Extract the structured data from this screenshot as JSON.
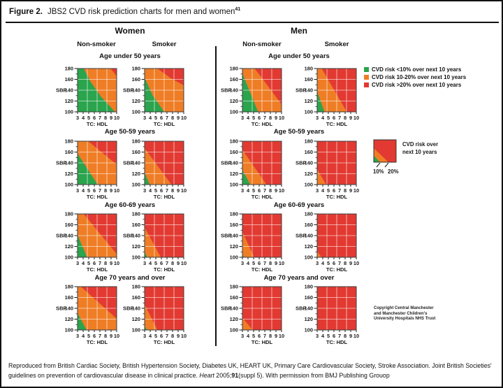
{
  "figure": {
    "label": "Figure 2.",
    "title": "JBS2 CVD risk prediction charts for men and women",
    "title_ref": "41"
  },
  "sections": {
    "women": "Women",
    "men": "Men"
  },
  "subheaders": {
    "nonsmoker": "Non-smoker",
    "smoker": "Smoker"
  },
  "age_rows": [
    "Age under 50 years",
    "Age 50-59 years",
    "Age 60-69 years",
    "Age 70 years and over"
  ],
  "colors": {
    "green": "#2aa44d",
    "orange": "#ef7d25",
    "red": "#e23a32",
    "grid": "rgba(255,255,255,0.55)"
  },
  "legend": {
    "items": [
      {
        "color": "green",
        "label": "CVD risk <10% over next 10 years"
      },
      {
        "color": "orange",
        "label": "CVD risk 10-20% over next 10 years"
      },
      {
        "color": "red",
        "label": "CVD risk >20% over next 10 years"
      }
    ]
  },
  "legend2": {
    "line1": "CVD risk over",
    "line2": "next 10 years",
    "label_10": "10%",
    "label_20": "20%"
  },
  "copyright": [
    "Copyright Central Manchester",
    "and Manchester Children's",
    "University Hospitals NHS Trust"
  ],
  "caption": {
    "p1": "Reproduced from British Cardiac Society, British Hypertension Society, Diabetes UK, HEART UK, Primary Care Cardiovascular Society, Stroke Association.  Joint British Societies' guidelines on prevention of cardiovascular disease in clinical practice. ",
    "journal": "Heart",
    "p2": " 2005;",
    "vol": "91",
    "p3": "(suppl 5). With permission from BMJ Publishing Grouop"
  },
  "chart_data": {
    "type": "area",
    "description": "JBS2 CVD risk region charts; colored regions give 10-year CVD risk band as a function of SBP and TC:HDL ratio, by sex, smoking status and age group",
    "x": {
      "label": "TC: HDL",
      "ticks": [
        3,
        4,
        5,
        6,
        7,
        8,
        9,
        10
      ],
      "range": [
        3,
        10
      ]
    },
    "y": {
      "label": "SBP",
      "ticks": [
        180,
        160,
        140,
        120,
        100
      ],
      "minor_ticks": [
        170,
        150,
        130,
        110
      ],
      "range": [
        100,
        180
      ]
    },
    "risk_levels": [
      "<10%",
      "10-20%",
      ">20%"
    ],
    "charts": [
      {
        "gender": "Women",
        "smoking": "Non-smoker",
        "age_group": "Age under 50 years",
        "regions": {
          "green": [
            [
              3,
              100
            ],
            [
              3,
              180
            ],
            [
              4.1,
              180
            ],
            [
              5.3,
              156
            ],
            [
              7.2,
              128
            ],
            [
              9.7,
              100
            ]
          ],
          "red": [
            [
              8.9,
              180
            ],
            [
              10,
              180
            ],
            [
              10,
              166
            ]
          ]
        }
      },
      {
        "gender": "Women",
        "smoking": "Smoker",
        "age_group": "Age under 50 years",
        "regions": {
          "green": [
            [
              3,
              100
            ],
            [
              3,
              163
            ],
            [
              4.4,
              131
            ],
            [
              6.5,
              100
            ]
          ],
          "red": [
            [
              5.3,
              180
            ],
            [
              10,
              180
            ],
            [
              10,
              149
            ],
            [
              7.7,
              162
            ]
          ]
        }
      },
      {
        "gender": "Men",
        "smoking": "Non-smoker",
        "age_group": "Age under 50 years",
        "regions": {
          "green": [
            [
              3,
              100
            ],
            [
              3,
              171
            ],
            [
              5.8,
              100
            ]
          ],
          "red": [
            [
              5.2,
              180
            ],
            [
              10,
              180
            ],
            [
              10,
              114
            ]
          ]
        }
      },
      {
        "gender": "Men",
        "smoking": "Smoker",
        "age_group": "Age under 50 years",
        "regions": {
          "green": [
            [
              3,
              100
            ],
            [
              3,
              137
            ],
            [
              4.3,
              100
            ]
          ],
          "red": [
            [
              3.8,
              180
            ],
            [
              10,
              180
            ],
            [
              10,
              100
            ],
            [
              8.3,
              100
            ]
          ]
        }
      },
      {
        "gender": "Women",
        "smoking": "Non-smoker",
        "age_group": "Age 50-59 years",
        "regions": {
          "green": [
            [
              3,
              100
            ],
            [
              3,
              157
            ],
            [
              6.6,
              100
            ]
          ],
          "red": [
            [
              4.9,
              180
            ],
            [
              10,
              180
            ],
            [
              10,
              137
            ]
          ]
        }
      },
      {
        "gender": "Women",
        "smoking": "Smoker",
        "age_group": "Age 50-59 years",
        "regions": {
          "green": [
            [
              3,
              100
            ],
            [
              3,
              122
            ],
            [
              3.9,
              100
            ]
          ],
          "red": [
            [
              3,
              167
            ],
            [
              3,
              180
            ],
            [
              10,
              180
            ],
            [
              10,
              100
            ],
            [
              7.8,
              100
            ]
          ]
        }
      },
      {
        "gender": "Men",
        "smoking": "Non-smoker",
        "age_group": "Age 50-59 years",
        "regions": {
          "green": [
            [
              3,
              100
            ],
            [
              3,
              127
            ],
            [
              4.4,
              100
            ]
          ],
          "red": [
            [
              3,
              164
            ],
            [
              3,
              180
            ],
            [
              10,
              180
            ],
            [
              10,
              100
            ],
            [
              7.3,
              100
            ]
          ]
        }
      },
      {
        "gender": "Men",
        "smoking": "Smoker",
        "age_group": "Age 50-59 years",
        "regions": {
          "green": null,
          "red": [
            [
              3,
              128
            ],
            [
              3,
              180
            ],
            [
              10,
              180
            ],
            [
              10,
              100
            ],
            [
              4.6,
              100
            ]
          ]
        }
      },
      {
        "gender": "Women",
        "smoking": "Non-smoker",
        "age_group": "Age 60-69 years",
        "regions": {
          "green": [
            [
              3,
              100
            ],
            [
              3,
              141
            ],
            [
              4.7,
              100
            ]
          ],
          "red": [
            [
              4.1,
              180
            ],
            [
              10,
              180
            ],
            [
              10,
              106
            ]
          ]
        }
      },
      {
        "gender": "Women",
        "smoking": "Smoker",
        "age_group": "Age 60-69 years",
        "regions": {
          "green": [
            [
              3,
              100
            ],
            [
              3,
              109
            ],
            [
              3.5,
              100
            ]
          ],
          "red": [
            [
              3,
              155
            ],
            [
              3,
              180
            ],
            [
              10,
              180
            ],
            [
              10,
              100
            ],
            [
              5.9,
              100
            ]
          ]
        }
      },
      {
        "gender": "Men",
        "smoking": "Non-smoker",
        "age_group": "Age 60-69 years",
        "regions": {
          "green": [
            [
              3,
              100
            ],
            [
              3,
              106
            ],
            [
              3.3,
              100
            ]
          ],
          "red": [
            [
              3,
              147
            ],
            [
              3,
              180
            ],
            [
              10,
              180
            ],
            [
              10,
              100
            ],
            [
              5.1,
              100
            ]
          ]
        }
      },
      {
        "gender": "Men",
        "smoking": "Smoker",
        "age_group": "Age 60-69 years",
        "regions": {
          "green": null,
          "red": [
            [
              3,
              111
            ],
            [
              3,
              180
            ],
            [
              10,
              180
            ],
            [
              10,
              100
            ],
            [
              3.8,
              100
            ]
          ]
        }
      },
      {
        "gender": "Women",
        "smoking": "Non-smoker",
        "age_group": "Age 70 years and over",
        "regions": {
          "green": [
            [
              3,
              100
            ],
            [
              3,
              131
            ],
            [
              4.6,
              100
            ]
          ],
          "red": [
            [
              3.6,
              180
            ],
            [
              10,
              180
            ],
            [
              10,
              121
            ]
          ]
        }
      },
      {
        "gender": "Women",
        "smoking": "Smoker",
        "age_group": "Age 70 years and over",
        "regions": {
          "green": [
            [
              3,
              100
            ],
            [
              3,
              107
            ],
            [
              3.4,
              100
            ]
          ],
          "red": [
            [
              3,
              147
            ],
            [
              3,
              180
            ],
            [
              10,
              180
            ],
            [
              10,
              100
            ],
            [
              5.3,
              100
            ]
          ]
        }
      },
      {
        "gender": "Men",
        "smoking": "Non-smoker",
        "age_group": "Age 70 years and over",
        "regions": {
          "green": null,
          "red": [
            [
              3,
              123
            ],
            [
              3,
              180
            ],
            [
              10,
              180
            ],
            [
              10,
              100
            ],
            [
              4.8,
              100
            ]
          ]
        }
      },
      {
        "gender": "Men",
        "smoking": "Smoker",
        "age_group": "Age 70 years and over",
        "regions": {
          "green": null,
          "red": [
            [
              3,
              104
            ],
            [
              3,
              180
            ],
            [
              10,
              180
            ],
            [
              10,
              100
            ],
            [
              3.3,
              100
            ]
          ]
        }
      }
    ]
  }
}
